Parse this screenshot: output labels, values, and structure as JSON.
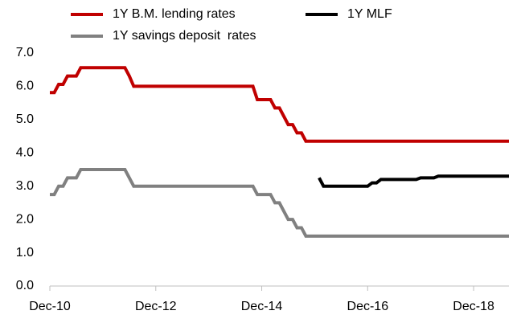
{
  "chart_data": {
    "type": "line",
    "categories": [
      "Dec-10",
      null,
      null,
      null,
      null,
      null,
      null,
      null,
      null,
      null,
      null,
      null,
      null,
      null,
      null,
      null,
      null,
      null,
      null,
      null,
      null,
      null,
      null,
      null,
      "Dec-12",
      null,
      null,
      null,
      null,
      null,
      null,
      null,
      null,
      null,
      null,
      null,
      null,
      null,
      null,
      null,
      null,
      null,
      null,
      null,
      null,
      null,
      null,
      null,
      "Dec-14",
      null,
      null,
      null,
      null,
      null,
      null,
      null,
      null,
      null,
      null,
      null,
      null,
      null,
      null,
      null,
      null,
      null,
      null,
      null,
      null,
      null,
      null,
      null,
      "Dec-16",
      null,
      null,
      null,
      null,
      null,
      null,
      null,
      null,
      null,
      null,
      null,
      null,
      null,
      null,
      null,
      null,
      null,
      null,
      null,
      null,
      null,
      null,
      null,
      "Dec-18",
      null,
      null,
      null,
      null,
      null,
      null,
      null,
      null
    ],
    "series": [
      {
        "name": "1Y B.M. lending rates",
        "color": "#c00000",
        "values": [
          5.81,
          5.81,
          6.06,
          6.06,
          6.31,
          6.31,
          6.31,
          6.56,
          6.56,
          6.56,
          6.56,
          6.56,
          6.56,
          6.56,
          6.56,
          6.56,
          6.56,
          6.56,
          6.31,
          6.0,
          6.0,
          6.0,
          6.0,
          6.0,
          6.0,
          6.0,
          6.0,
          6.0,
          6.0,
          6.0,
          6.0,
          6.0,
          6.0,
          6.0,
          6.0,
          6.0,
          6.0,
          6.0,
          6.0,
          6.0,
          6.0,
          6.0,
          6.0,
          6.0,
          6.0,
          6.0,
          6.0,
          5.6,
          5.6,
          5.6,
          5.6,
          5.35,
          5.35,
          5.1,
          4.85,
          4.85,
          4.6,
          4.6,
          4.35,
          4.35,
          4.35,
          4.35,
          4.35,
          4.35,
          4.35,
          4.35,
          4.35,
          4.35,
          4.35,
          4.35,
          4.35,
          4.35,
          4.35,
          4.35,
          4.35,
          4.35,
          4.35,
          4.35,
          4.35,
          4.35,
          4.35,
          4.35,
          4.35,
          4.35,
          4.35,
          4.35,
          4.35,
          4.35,
          4.35,
          4.35,
          4.35,
          4.35,
          4.35,
          4.35,
          4.35,
          4.35,
          4.35,
          4.35,
          4.35,
          4.35,
          4.35,
          4.35,
          4.35,
          4.35,
          4.35
        ]
      },
      {
        "name": "1Y MLF",
        "color": "#000000",
        "values": [
          null,
          null,
          null,
          null,
          null,
          null,
          null,
          null,
          null,
          null,
          null,
          null,
          null,
          null,
          null,
          null,
          null,
          null,
          null,
          null,
          null,
          null,
          null,
          null,
          null,
          null,
          null,
          null,
          null,
          null,
          null,
          null,
          null,
          null,
          null,
          null,
          null,
          null,
          null,
          null,
          null,
          null,
          null,
          null,
          null,
          null,
          null,
          null,
          null,
          null,
          null,
          null,
          null,
          null,
          null,
          null,
          null,
          null,
          null,
          null,
          null,
          3.25,
          3.0,
          3.0,
          3.0,
          3.0,
          3.0,
          3.0,
          3.0,
          3.0,
          3.0,
          3.0,
          3.0,
          3.1,
          3.1,
          3.2,
          3.2,
          3.2,
          3.2,
          3.2,
          3.2,
          3.2,
          3.2,
          3.2,
          3.25,
          3.25,
          3.25,
          3.25,
          3.3,
          3.3,
          3.3,
          3.3,
          3.3,
          3.3,
          3.3,
          3.3,
          3.3,
          3.3,
          3.3,
          3.3,
          3.3,
          3.3,
          3.3,
          3.3,
          3.3
        ]
      },
      {
        "name": "1Y savings deposit  rates",
        "color": "#808080",
        "values": [
          2.75,
          2.75,
          3.0,
          3.0,
          3.25,
          3.25,
          3.25,
          3.5,
          3.5,
          3.5,
          3.5,
          3.5,
          3.5,
          3.5,
          3.5,
          3.5,
          3.5,
          3.5,
          3.25,
          3.0,
          3.0,
          3.0,
          3.0,
          3.0,
          3.0,
          3.0,
          3.0,
          3.0,
          3.0,
          3.0,
          3.0,
          3.0,
          3.0,
          3.0,
          3.0,
          3.0,
          3.0,
          3.0,
          3.0,
          3.0,
          3.0,
          3.0,
          3.0,
          3.0,
          3.0,
          3.0,
          3.0,
          2.75,
          2.75,
          2.75,
          2.75,
          2.5,
          2.5,
          2.25,
          2.0,
          2.0,
          1.75,
          1.75,
          1.5,
          1.5,
          1.5,
          1.5,
          1.5,
          1.5,
          1.5,
          1.5,
          1.5,
          1.5,
          1.5,
          1.5,
          1.5,
          1.5,
          1.5,
          1.5,
          1.5,
          1.5,
          1.5,
          1.5,
          1.5,
          1.5,
          1.5,
          1.5,
          1.5,
          1.5,
          1.5,
          1.5,
          1.5,
          1.5,
          1.5,
          1.5,
          1.5,
          1.5,
          1.5,
          1.5,
          1.5,
          1.5,
          1.5,
          1.5,
          1.5,
          1.5,
          1.5,
          1.5,
          1.5,
          1.5,
          1.5
        ]
      }
    ],
    "ylim": [
      0,
      7
    ],
    "yticks": [
      {
        "value": 0,
        "label": "0.0"
      },
      {
        "value": 1,
        "label": "1.0"
      },
      {
        "value": 2,
        "label": "2.0"
      },
      {
        "value": 3,
        "label": "3.0"
      },
      {
        "value": 4,
        "label": "4.0"
      },
      {
        "value": 5,
        "label": "5.0"
      },
      {
        "value": 6,
        "label": "6.0"
      },
      {
        "value": 7,
        "label": "7.0"
      }
    ],
    "grid": false
  }
}
